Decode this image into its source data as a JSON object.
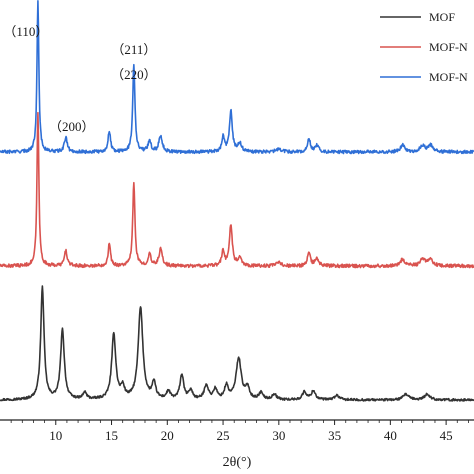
{
  "chart_data": {
    "type": "line",
    "xlabel": "2θ(°)",
    "ylabel": "",
    "title": "",
    "xlim": [
      5,
      47.5
    ],
    "xticks": [
      10,
      15,
      20,
      25,
      30,
      35,
      40,
      45
    ],
    "grid": false,
    "legend_position": "top-right",
    "series": [
      {
        "name": "MOF",
        "color": "#333333",
        "baseline": 0.0,
        "peaks": [
          [
            8.8,
            1.0,
            0.18
          ],
          [
            10.6,
            0.62,
            0.2
          ],
          [
            12.6,
            0.06,
            0.2
          ],
          [
            15.2,
            0.58,
            0.22
          ],
          [
            16.0,
            0.1,
            0.2
          ],
          [
            17.6,
            0.82,
            0.25
          ],
          [
            18.8,
            0.14,
            0.2
          ],
          [
            20.1,
            0.07,
            0.2
          ],
          [
            21.3,
            0.22,
            0.2
          ],
          [
            22.1,
            0.08,
            0.2
          ],
          [
            23.5,
            0.13,
            0.22
          ],
          [
            24.3,
            0.09,
            0.2
          ],
          [
            25.3,
            0.12,
            0.2
          ],
          [
            26.4,
            0.37,
            0.28
          ],
          [
            27.2,
            0.1,
            0.2
          ],
          [
            28.4,
            0.06,
            0.22
          ],
          [
            29.6,
            0.05,
            0.22
          ],
          [
            32.3,
            0.07,
            0.22
          ],
          [
            33.1,
            0.08,
            0.22
          ],
          [
            35.2,
            0.04,
            0.25
          ],
          [
            41.4,
            0.05,
            0.3
          ],
          [
            43.3,
            0.05,
            0.3
          ]
        ]
      },
      {
        "name": "MOF-N",
        "color": "#d9534f",
        "baseline": 1.0,
        "peaks": [
          [
            8.4,
            0.92,
            0.1
          ],
          [
            10.9,
            0.09,
            0.15
          ],
          [
            14.8,
            0.13,
            0.13
          ],
          [
            17.0,
            0.49,
            0.12
          ],
          [
            18.4,
            0.07,
            0.15
          ],
          [
            19.4,
            0.1,
            0.18
          ],
          [
            25.0,
            0.09,
            0.14
          ],
          [
            25.7,
            0.25,
            0.15
          ],
          [
            26.5,
            0.05,
            0.2
          ],
          [
            30.0,
            0.02,
            0.25
          ],
          [
            32.7,
            0.08,
            0.15
          ],
          [
            33.4,
            0.04,
            0.2
          ],
          [
            41.1,
            0.04,
            0.25
          ],
          [
            42.9,
            0.04,
            0.25
          ],
          [
            43.6,
            0.04,
            0.25
          ]
        ]
      },
      {
        "name": "MOF-N",
        "color": "#2f6fd6",
        "baseline": 2.0,
        "peaks": [
          [
            8.4,
            0.92,
            0.1
          ],
          [
            10.9,
            0.09,
            0.15
          ],
          [
            14.8,
            0.13,
            0.13
          ],
          [
            17.0,
            0.53,
            0.12
          ],
          [
            18.4,
            0.07,
            0.15
          ],
          [
            19.4,
            0.1,
            0.18
          ],
          [
            25.0,
            0.09,
            0.14
          ],
          [
            25.7,
            0.25,
            0.15
          ],
          [
            26.5,
            0.05,
            0.2
          ],
          [
            30.0,
            0.02,
            0.25
          ],
          [
            32.7,
            0.08,
            0.15
          ],
          [
            33.4,
            0.04,
            0.2
          ],
          [
            41.1,
            0.04,
            0.25
          ],
          [
            42.9,
            0.04,
            0.25
          ],
          [
            43.6,
            0.04,
            0.25
          ]
        ]
      }
    ],
    "annotations": [
      {
        "text": "（110）",
        "x": 8.4,
        "series": 2
      },
      {
        "text": "（200）",
        "x": 10.9,
        "series": 2
      },
      {
        "text": "（211）",
        "x": 17.0,
        "series": 2
      },
      {
        "text": "（220）",
        "x": 17.0,
        "series": 2
      }
    ]
  }
}
